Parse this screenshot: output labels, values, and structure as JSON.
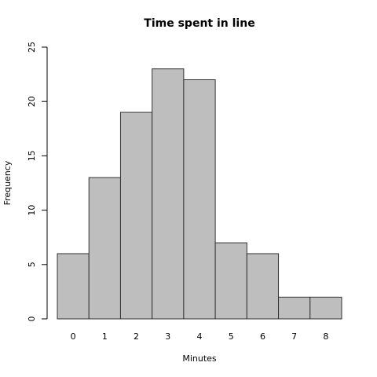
{
  "chart_data": {
    "type": "bar",
    "title": "Time spent in line",
    "x_label": "Minutes",
    "y_label": "Frequency",
    "categories": [
      "0",
      "1",
      "2",
      "3",
      "4",
      "5",
      "6",
      "7",
      "8"
    ],
    "values": [
      6,
      13,
      19,
      23,
      22,
      7,
      6,
      2,
      2
    ],
    "color": "#bebebe",
    "edge_color": "#333333",
    "ylim": [
      0,
      25
    ],
    "yticks": [
      0,
      5,
      10,
      15,
      20,
      25
    ],
    "grid": false
  }
}
